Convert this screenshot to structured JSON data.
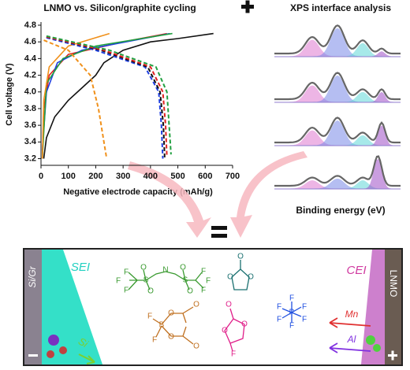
{
  "chart_data": {
    "type": "line",
    "title": "LNMO vs. Silicon/graphite cycling",
    "x_label": "Negative electrode capacity (mAh/g)",
    "y_label": "Cell voltage (V)",
    "xlim": [
      0,
      700
    ],
    "ylim": [
      3.12,
      4.8
    ],
    "xticks": [
      0,
      100,
      200,
      300,
      400,
      500,
      600,
      700
    ],
    "yticks": [
      3.2,
      3.4,
      3.6,
      3.8,
      {
        "value": 4,
        "label": "4.0"
      },
      4.2,
      4.4,
      4.6,
      4.8
    ],
    "series": [
      {
        "color": "#111111",
        "dashed": false,
        "x": [
          10,
          20,
          50,
          100,
          150,
          200,
          230,
          300,
          400,
          500,
          630
        ],
        "values": [
          3.2,
          3.45,
          3.7,
          3.9,
          4.05,
          4.2,
          4.35,
          4.5,
          4.6,
          4.64,
          4.7
        ]
      },
      {
        "color": "#e02020",
        "dashed": false,
        "x": [
          5,
          10,
          30,
          100,
          300,
          460
        ],
        "values": [
          3.2,
          3.8,
          4.2,
          4.45,
          4.6,
          4.7
        ]
      },
      {
        "color": "#2040e0",
        "dashed": false,
        "x": [
          5,
          20,
          60,
          150,
          470
        ],
        "values": [
          3.3,
          4.0,
          4.35,
          4.5,
          4.7
        ]
      },
      {
        "color": "#20a040",
        "dashed": false,
        "x": [
          5,
          20,
          80,
          200,
          480
        ],
        "values": [
          3.2,
          4.1,
          4.4,
          4.55,
          4.7
        ]
      },
      {
        "color": "#f0901a",
        "dashed": false,
        "x": [
          5,
          10,
          30,
          100,
          200,
          250
        ],
        "values": [
          3.2,
          3.9,
          4.3,
          4.55,
          4.65,
          4.7
        ]
      },
      {
        "color": "#f0901a",
        "dashed": true,
        "x": [
          10,
          100,
          180,
          210,
          230,
          240
        ],
        "values": [
          4.62,
          4.5,
          4.2,
          3.8,
          3.4,
          3.2
        ]
      },
      {
        "color": "#2040e0",
        "dashed": true,
        "x": [
          20,
          200,
          380,
          430,
          440,
          445
        ],
        "values": [
          4.65,
          4.5,
          4.3,
          4.0,
          3.6,
          3.2
        ]
      },
      {
        "color": "#111111",
        "dashed": true,
        "x": [
          20,
          220,
          390,
          435,
          447,
          452
        ],
        "values": [
          4.66,
          4.5,
          4.3,
          4.0,
          3.6,
          3.2
        ]
      },
      {
        "color": "#e02020",
        "dashed": true,
        "x": [
          20,
          230,
          400,
          445,
          455,
          460
        ],
        "values": [
          4.66,
          4.5,
          4.3,
          4.0,
          3.6,
          3.22
        ]
      },
      {
        "color": "#20a040",
        "dashed": true,
        "x": [
          20,
          250,
          420,
          460,
          470,
          475
        ],
        "values": [
          4.67,
          4.5,
          4.3,
          4.0,
          3.5,
          3.25
        ]
      }
    ]
  },
  "xps": {
    "title": "XPS interface analysis",
    "x_label": "Binding energy (eV)"
  },
  "cell": {
    "anode": "Si/Gr",
    "sei": "SEI",
    "si": "Si",
    "cathode": "LNMO",
    "cei": "CEI",
    "mn": "Mn",
    "al": "Al",
    "tfsi": [
      "F",
      "F",
      "F",
      "S",
      "O",
      "O",
      "N",
      "S",
      "O",
      "O",
      "F",
      "F",
      "F"
    ],
    "ec": [
      "O",
      "O",
      "O"
    ],
    "dfob": [
      "F",
      "F",
      "B",
      "O",
      "O",
      "O",
      "O"
    ],
    "fec": [
      "O",
      "O",
      "O",
      "F"
    ],
    "pf6": [
      "P",
      "F",
      "F",
      "F",
      "F",
      "F",
      "F"
    ]
  }
}
